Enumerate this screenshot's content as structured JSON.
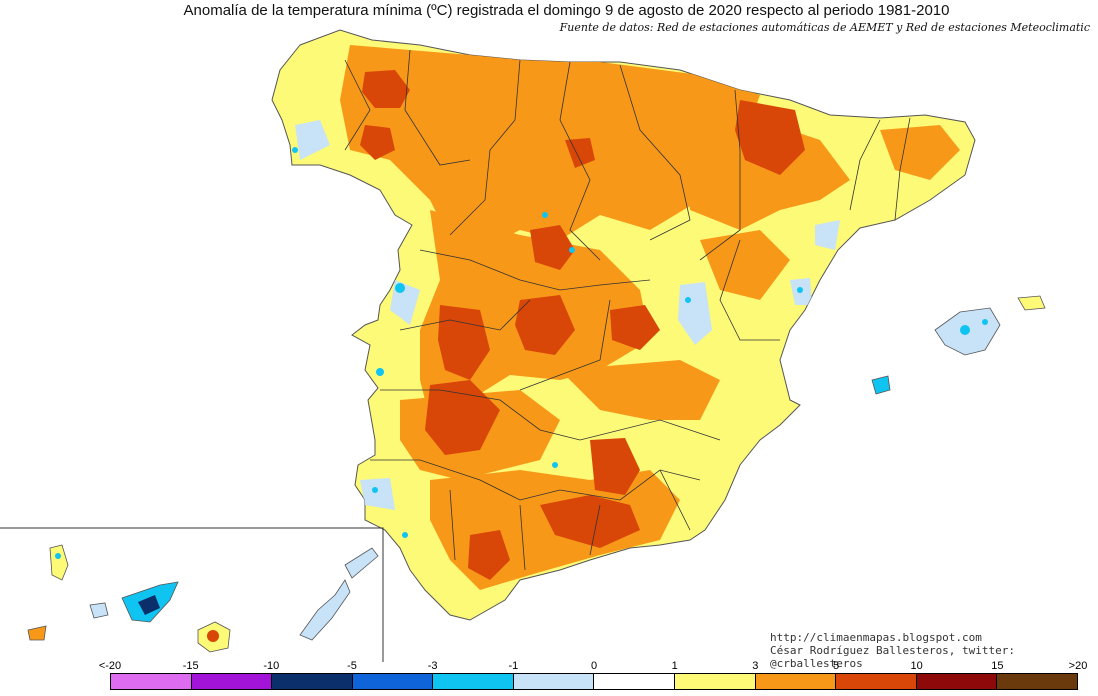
{
  "title": "Anomalía de la temperatura mínima (ºC) registrada el domingo 9 de agosto de 2020 respecto al periodo 1981-2010",
  "subtitle": "Fuente de datos: Red de estaciones automáticas de AEMET y Red de estaciones Meteoclimatic",
  "credits": {
    "url": "http://climaenmapas.blogspot.com",
    "author": "César Rodríguez Ballesteros, twitter: @crballesteros"
  },
  "legend": {
    "ticks": [
      "<-20",
      "-15",
      "-10",
      "-5",
      "-3",
      "-1",
      "0",
      "1",
      "3",
      "5",
      "10",
      "15",
      ">20"
    ],
    "colors": [
      "#dd6cf0",
      "#a215d8",
      "#0a2f6b",
      "#0e64d8",
      "#0fc4f0",
      "#c8e2f8",
      "#ffffff",
      "#fdfa78",
      "#f89818",
      "#d84608",
      "#8e0a0a",
      "#6b3a0c"
    ]
  },
  "map_colors": {
    "sea": "#ffffff",
    "very_light": "#fdfa78",
    "mild": "#f89818",
    "strong": "#d84608",
    "cold_light": "#c8e2f8",
    "cold": "#0fc4f0",
    "very_cold": "#0e64d8",
    "extreme_cold": "#0a2f6b"
  }
}
